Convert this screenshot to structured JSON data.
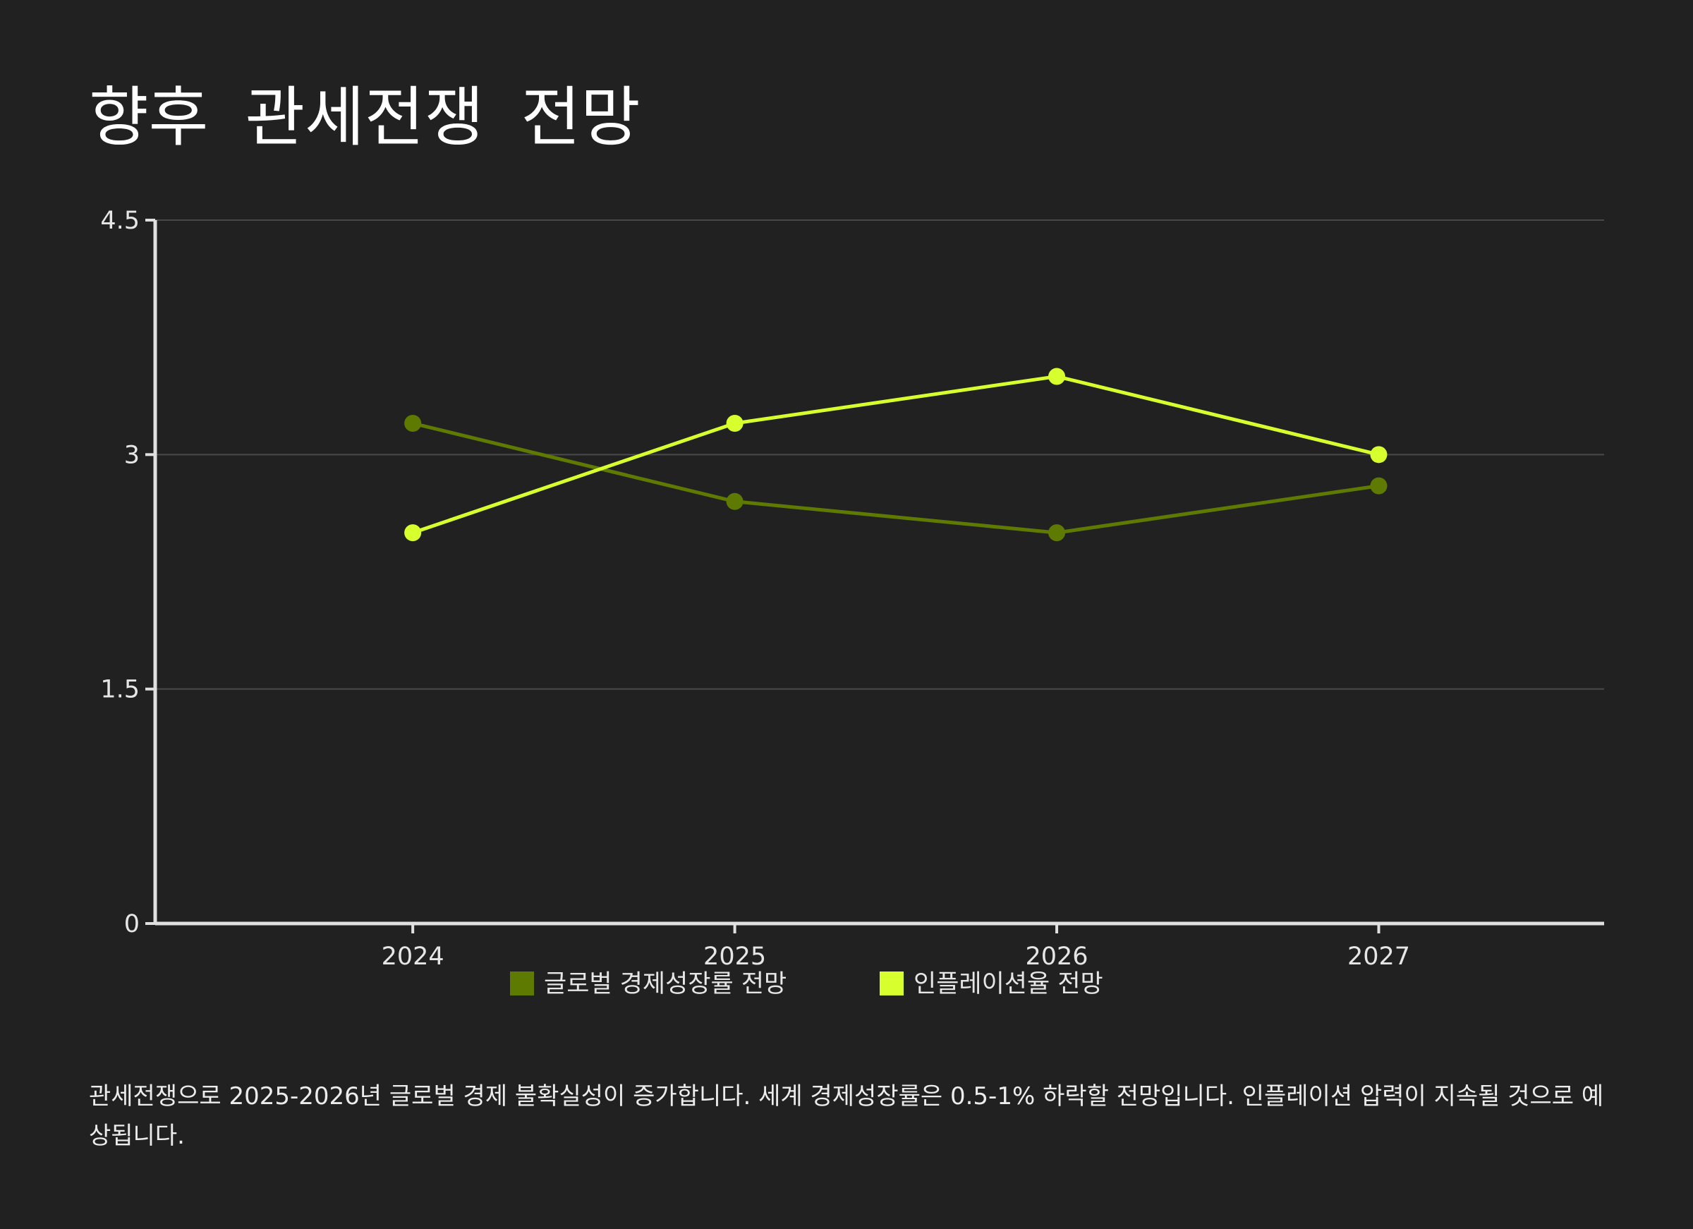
{
  "title": "향후 관세전쟁 전망",
  "description": "관세전쟁으로 2025-2026년 글로벌 경제 불확실성이 증가합니다. 세계 경제성장률은 0.5-1% 하락할 전망입니다. 인플레이션 압력이 지속될 것으로 예상됩니다.",
  "colors": {
    "background": "#212121",
    "axis": "#e0e0e0",
    "grid": "#4a4a4a"
  },
  "chart_data": {
    "type": "line",
    "title": "향후 관세전쟁 전망",
    "xlabel": "",
    "ylabel": "",
    "categories": [
      "2024",
      "2025",
      "2026",
      "2027"
    ],
    "ylim": [
      0,
      4.5
    ],
    "yticks": [
      0,
      1.5,
      3,
      4.5
    ],
    "ytick_labels": [
      "0",
      "1.5",
      "3",
      "4.5"
    ],
    "grid": true,
    "legend_position": "bottom-center",
    "series": [
      {
        "name": "글로벌 경제성장률 전망",
        "color": "#5f7a00",
        "values": [
          3.2,
          2.7,
          2.5,
          2.8
        ]
      },
      {
        "name": "인플레이션율 전망",
        "color": "#d7ff2d",
        "values": [
          2.5,
          3.2,
          3.5,
          3.0
        ]
      }
    ]
  }
}
